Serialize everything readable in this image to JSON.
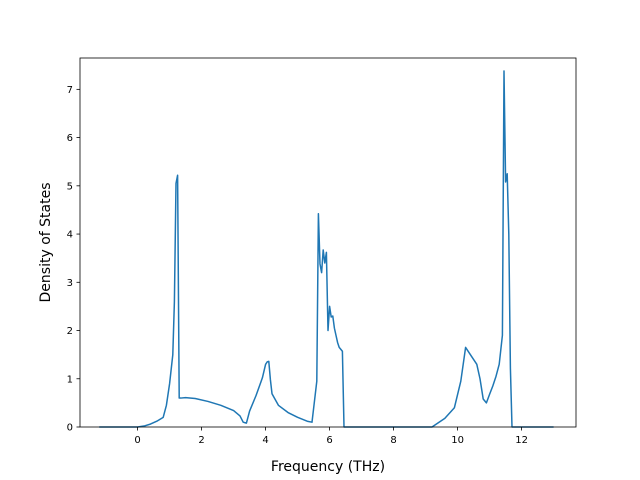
{
  "chart_data": {
    "type": "line",
    "title": "",
    "xlabel": "Frequency (THz)",
    "ylabel": "Density of States",
    "xlim": [
      -1.8,
      13.7
    ],
    "ylim": [
      0,
      7.65
    ],
    "xticks": [
      0,
      2,
      4,
      6,
      8,
      10,
      12
    ],
    "yticks": [
      0,
      1,
      2,
      3,
      4,
      5,
      6,
      7
    ],
    "grid": false,
    "legend": "none",
    "series": [
      {
        "color": "#1f77b4",
        "x": [
          -1.2,
          -0.5,
          0.0,
          0.2,
          0.4,
          0.6,
          0.8,
          0.9,
          1.0,
          1.1,
          1.15,
          1.2,
          1.25,
          1.3,
          1.35,
          1.5,
          1.8,
          2.2,
          2.6,
          3.0,
          3.2,
          3.3,
          3.4,
          3.5,
          3.7,
          3.9,
          4.0,
          4.05,
          4.1,
          4.15,
          4.2,
          4.4,
          4.7,
          5.0,
          5.3,
          5.45,
          5.6,
          5.65,
          5.7,
          5.75,
          5.8,
          5.85,
          5.9,
          5.95,
          6.0,
          6.05,
          6.1,
          6.15,
          6.2,
          6.25,
          6.3,
          6.4,
          6.45,
          6.5,
          7.0,
          8.0,
          9.0,
          9.2,
          9.6,
          9.9,
          10.1,
          10.25,
          10.4,
          10.6,
          10.7,
          10.8,
          10.9,
          11.0,
          11.1,
          11.2,
          11.3,
          11.4,
          11.45,
          11.5,
          11.55,
          11.6,
          11.65,
          11.7,
          11.75,
          11.8,
          11.85,
          12.0,
          12.5,
          13.0
        ],
        "y": [
          0.0,
          0.0,
          0.0,
          0.02,
          0.06,
          0.12,
          0.2,
          0.45,
          0.9,
          1.5,
          2.6,
          5.05,
          5.22,
          0.6,
          0.6,
          0.61,
          0.59,
          0.53,
          0.45,
          0.34,
          0.23,
          0.1,
          0.08,
          0.33,
          0.65,
          1.02,
          1.3,
          1.35,
          1.36,
          0.98,
          0.69,
          0.45,
          0.3,
          0.2,
          0.12,
          0.1,
          0.95,
          4.42,
          3.38,
          3.2,
          3.67,
          3.4,
          3.62,
          2.0,
          2.5,
          2.28,
          2.3,
          2.05,
          1.9,
          1.75,
          1.65,
          1.57,
          0.0,
          0.0,
          0.0,
          0.0,
          0.0,
          0.0,
          0.18,
          0.4,
          0.95,
          1.65,
          1.5,
          1.3,
          1.0,
          0.58,
          0.5,
          0.68,
          0.85,
          1.05,
          1.3,
          1.9,
          7.38,
          5.08,
          5.25,
          4.0,
          1.22,
          0.0,
          0.0,
          0.0,
          0.0,
          0.0,
          0.0,
          0.0
        ]
      }
    ]
  }
}
